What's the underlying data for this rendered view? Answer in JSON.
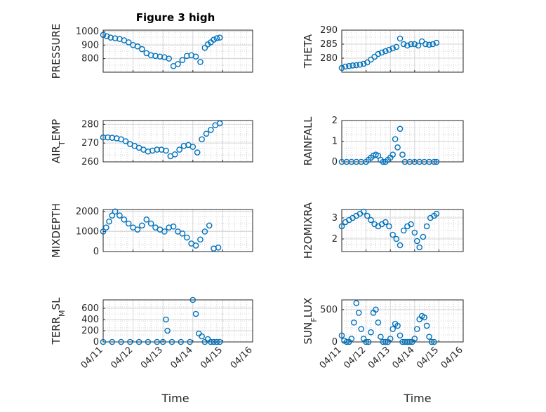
{
  "figure": {
    "title": "Figure 3 high"
  },
  "colors": {
    "marker": "#0072BD",
    "axis": "#262626",
    "grid": "#d4d4d4"
  },
  "x_tick_labels": [
    "04/11",
    "04/12",
    "04/13",
    "04/14",
    "04/15",
    "04/16"
  ],
  "x_axis_label": "Time",
  "panels": [
    {
      "id": "pressure",
      "ylabel": "PRESSURE",
      "yticks": [
        "1000",
        "900",
        "800"
      ]
    },
    {
      "id": "theta",
      "ylabel": "THETA",
      "yticks": [
        "290",
        "285",
        "280"
      ]
    },
    {
      "id": "air_temp",
      "ylabel_main": "AIR",
      "ylabel_sub": "T",
      "ylabel_rest": "EMP",
      "yticks": [
        "280",
        "270",
        "260"
      ]
    },
    {
      "id": "rainfall",
      "ylabel": "RAINFALL",
      "yticks": [
        "2",
        "1",
        "0"
      ]
    },
    {
      "id": "mixdepth",
      "ylabel": "MIXDEPTH",
      "yticks": [
        "2000",
        "1000",
        "0"
      ]
    },
    {
      "id": "h2omixra",
      "ylabel": "H2OMIXRA",
      "yticks": [
        "3",
        "2"
      ]
    },
    {
      "id": "terr_msl",
      "ylabel_main": "TERR",
      "ylabel_sub": "M",
      "ylabel_rest": "SL",
      "yticks": [
        "600",
        "400",
        "200",
        "0"
      ]
    },
    {
      "id": "sun_flux",
      "ylabel_main": "SUN",
      "ylabel_sub": "F",
      "ylabel_rest": "LUX",
      "yticks": [
        "500",
        "0"
      ]
    }
  ],
  "chart_data": [
    {
      "type": "scatter",
      "title": "Figure 3 high",
      "ylabel": "PRESSURE",
      "xlabel": "",
      "xlim": [
        "04/11",
        "04/16"
      ],
      "ylim": [
        700,
        1010
      ],
      "grid": true,
      "x": [
        0,
        0.12,
        0.25,
        0.4,
        0.55,
        0.7,
        0.85,
        1.0,
        1.15,
        1.3,
        1.45,
        1.6,
        1.75,
        1.9,
        2.05,
        2.2,
        2.35,
        2.5,
        2.65,
        2.8,
        2.95,
        3.1,
        3.25,
        3.4,
        3.5,
        3.6,
        3.7,
        3.8,
        3.9
      ],
      "y": [
        975,
        965,
        955,
        950,
        945,
        935,
        920,
        900,
        890,
        870,
        840,
        825,
        820,
        815,
        810,
        800,
        745,
        760,
        790,
        820,
        825,
        815,
        775,
        880,
        905,
        920,
        940,
        950,
        955
      ]
    },
    {
      "type": "scatter",
      "ylabel": "THETA",
      "xlabel": "",
      "xlim": [
        "04/11",
        "04/16"
      ],
      "ylim": [
        275,
        290
      ],
      "grid": true,
      "x": [
        0,
        0.15,
        0.3,
        0.45,
        0.6,
        0.75,
        0.9,
        1.05,
        1.2,
        1.35,
        1.5,
        1.65,
        1.8,
        1.95,
        2.1,
        2.25,
        2.4,
        2.55,
        2.7,
        2.85,
        3.0,
        3.15,
        3.3,
        3.45,
        3.6,
        3.75,
        3.9
      ],
      "y": [
        276.5,
        277,
        277.2,
        277.4,
        277.5,
        277.7,
        278,
        278.5,
        279.5,
        280.5,
        281.5,
        282,
        282.5,
        283,
        283.5,
        284,
        287,
        285,
        284.5,
        285,
        285,
        284.5,
        286,
        285,
        284.8,
        285,
        285.5
      ]
    },
    {
      "type": "scatter",
      "ylabel": "AIR_TEMP",
      "xlabel": "",
      "xlim": [
        "04/11",
        "04/16"
      ],
      "ylim": [
        260,
        282
      ],
      "grid": true,
      "x": [
        0,
        0.15,
        0.3,
        0.45,
        0.6,
        0.75,
        0.9,
        1.05,
        1.2,
        1.35,
        1.5,
        1.65,
        1.8,
        1.95,
        2.1,
        2.25,
        2.4,
        2.55,
        2.7,
        2.85,
        3.0,
        3.15,
        3.3,
        3.45,
        3.6,
        3.75,
        3.9
      ],
      "y": [
        273,
        273,
        272.8,
        272.5,
        272,
        271,
        269.5,
        268.5,
        267.5,
        266.5,
        265.5,
        266,
        266.5,
        266.5,
        266,
        263,
        264,
        266.5,
        268.5,
        269,
        268,
        265,
        272,
        275,
        277,
        279.5,
        280.5
      ]
    },
    {
      "type": "scatter",
      "ylabel": "RAINFALL",
      "xlabel": "",
      "xlim": [
        "04/11",
        "04/16"
      ],
      "ylim": [
        0,
        2
      ],
      "grid": true,
      "x": [
        0,
        0.2,
        0.4,
        0.6,
        0.8,
        1.0,
        1.1,
        1.2,
        1.3,
        1.4,
        1.5,
        1.6,
        1.7,
        1.8,
        1.9,
        2.0,
        2.1,
        2.2,
        2.3,
        2.4,
        2.5,
        2.6,
        2.8,
        3.0,
        3.2,
        3.4,
        3.6,
        3.8,
        3.9
      ],
      "y": [
        0,
        0,
        0,
        0,
        0,
        0,
        0.1,
        0.2,
        0.3,
        0.35,
        0.3,
        0.1,
        0,
        0,
        0.1,
        0.2,
        0.35,
        1.1,
        0.7,
        1.6,
        0.35,
        0,
        0,
        0,
        0,
        0,
        0,
        0,
        0
      ]
    },
    {
      "type": "scatter",
      "ylabel": "MIXDEPTH",
      "xlabel": "",
      "xlim": [
        "04/11",
        "04/16"
      ],
      "ylim": [
        0,
        2100
      ],
      "grid": true,
      "x": [
        0,
        0.1,
        0.2,
        0.3,
        0.4,
        0.55,
        0.7,
        0.85,
        1.0,
        1.15,
        1.3,
        1.45,
        1.6,
        1.75,
        1.9,
        2.05,
        2.2,
        2.35,
        2.5,
        2.65,
        2.8,
        2.95,
        3.1,
        3.25,
        3.4,
        3.55,
        3.7,
        3.85
      ],
      "y": [
        1000,
        1200,
        1500,
        1800,
        2000,
        1800,
        1600,
        1400,
        1200,
        1100,
        1300,
        1600,
        1400,
        1200,
        1100,
        1000,
        1200,
        1250,
        1000,
        900,
        700,
        400,
        300,
        600,
        1000,
        1300,
        150,
        200
      ]
    },
    {
      "type": "scatter",
      "ylabel": "H2OMIXRA",
      "xlabel": "",
      "xlim": [
        "04/11",
        "04/16"
      ],
      "ylim": [
        1.4,
        3.4
      ],
      "grid": true,
      "x": [
        0,
        0.15,
        0.3,
        0.45,
        0.6,
        0.75,
        0.9,
        1.05,
        1.2,
        1.35,
        1.5,
        1.65,
        1.8,
        1.95,
        2.1,
        2.25,
        2.4,
        2.55,
        2.7,
        2.85,
        3.0,
        3.1,
        3.2,
        3.35,
        3.5,
        3.65,
        3.8,
        3.9
      ],
      "y": [
        2.6,
        2.8,
        2.9,
        3.0,
        3.1,
        3.2,
        3.3,
        3.1,
        2.9,
        2.7,
        2.6,
        2.7,
        2.8,
        2.6,
        2.2,
        2.0,
        1.7,
        2.4,
        2.6,
        2.7,
        2.3,
        1.9,
        1.6,
        2.1,
        2.6,
        3.0,
        3.1,
        3.2
      ]
    },
    {
      "type": "scatter",
      "ylabel": "TERR_MSL",
      "xlabel": "Time",
      "xlim": [
        "04/11",
        "04/16"
      ],
      "ylim": [
        0,
        750
      ],
      "grid": true,
      "x": [
        0,
        0.3,
        0.6,
        0.9,
        1.2,
        1.5,
        1.8,
        2.0,
        2.1,
        2.15,
        2.3,
        2.6,
        2.9,
        3.0,
        3.1,
        3.2,
        3.3,
        3.4,
        3.5,
        3.6,
        3.7,
        3.8,
        3.9
      ],
      "y": [
        0,
        0,
        0,
        0,
        0,
        0,
        0,
        0,
        400,
        200,
        0,
        0,
        0,
        750,
        500,
        150,
        100,
        0,
        50,
        0,
        0,
        0,
        0
      ]
    },
    {
      "type": "scatter",
      "ylabel": "SUN_FLUX",
      "xlabel": "Time",
      "xlim": [
        "04/11",
        "04/16"
      ],
      "ylim": [
        0,
        650
      ],
      "grid": true,
      "x": [
        0,
        0.1,
        0.2,
        0.3,
        0.4,
        0.5,
        0.6,
        0.7,
        0.8,
        0.9,
        1.0,
        1.1,
        1.2,
        1.3,
        1.4,
        1.5,
        1.6,
        1.7,
        1.8,
        1.9,
        2.0,
        2.1,
        2.2,
        2.3,
        2.4,
        2.5,
        2.6,
        2.7,
        2.8,
        2.9,
        3.0,
        3.1,
        3.2,
        3.3,
        3.4,
        3.5,
        3.6,
        3.7,
        3.8
      ],
      "y": [
        100,
        20,
        0,
        0,
        50,
        300,
        600,
        450,
        200,
        50,
        0,
        0,
        150,
        450,
        500,
        300,
        80,
        0,
        0,
        0,
        50,
        200,
        280,
        250,
        100,
        0,
        0,
        0,
        0,
        0,
        50,
        200,
        350,
        400,
        380,
        250,
        80,
        0,
        0
      ]
    }
  ]
}
